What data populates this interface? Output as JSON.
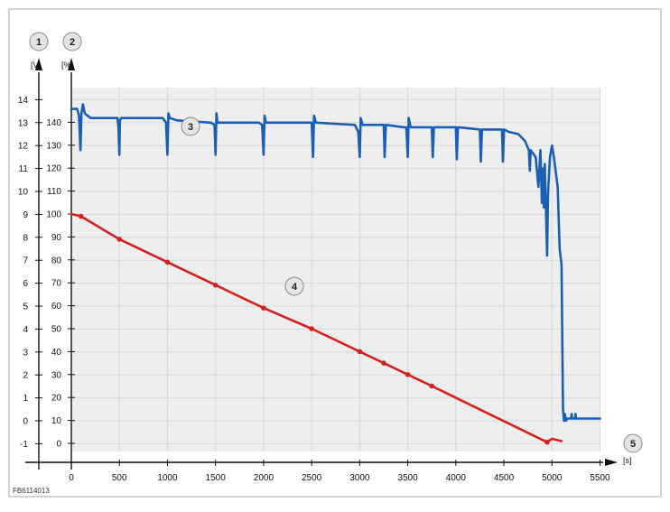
{
  "figure_id": "FB6114013",
  "markers": {
    "m1": "1",
    "m2": "2",
    "m3": "3",
    "m4": "4",
    "m5": "5"
  },
  "units": {
    "volt": "[V]",
    "percent": "[%]",
    "seconds": "[s]"
  },
  "colors": {
    "voltage": "#1a5fb4",
    "charge": "#d42020",
    "grid": "#d8d8d8",
    "plot_bg": "#eeeeee",
    "axis": "#111111",
    "frame": "#aaaaaa"
  },
  "chart_data": {
    "type": "line",
    "x_ticks": [
      0,
      500,
      1000,
      1500,
      2000,
      2500,
      3000,
      3500,
      4000,
      4500,
      5000,
      5500
    ],
    "xlim": [
      0,
      5500
    ],
    "y_left_ticks": [
      14,
      13,
      12,
      11,
      10,
      9,
      8,
      7,
      6,
      5,
      4,
      3,
      2,
      1,
      0,
      -1
    ],
    "y_left_lim": [
      -1,
      14
    ],
    "y_right_ticks": [
      140,
      130,
      120,
      110,
      100,
      90,
      80,
      70,
      60,
      50,
      40,
      30,
      20,
      10,
      0
    ],
    "y_right_lim": [
      0,
      140
    ],
    "grid": true,
    "series": [
      {
        "axis": "voltage",
        "points": [
          [
            0,
            13.6
          ],
          [
            60,
            13.6
          ],
          [
            80,
            13.3
          ],
          [
            95,
            11.8
          ],
          [
            105,
            13.4
          ],
          [
            120,
            13.8
          ],
          [
            140,
            13.4
          ],
          [
            200,
            13.2
          ],
          [
            480,
            13.2
          ],
          [
            490,
            12.8
          ],
          [
            500,
            11.6
          ],
          [
            505,
            13.1
          ],
          [
            520,
            13.2
          ],
          [
            950,
            13.2
          ],
          [
            985,
            13.0
          ],
          [
            1000,
            11.6
          ],
          [
            1010,
            13.4
          ],
          [
            1025,
            13.2
          ],
          [
            1100,
            13.1
          ],
          [
            1450,
            13.0
          ],
          [
            1490,
            12.9
          ],
          [
            1500,
            11.6
          ],
          [
            1510,
            13.4
          ],
          [
            1520,
            13.0
          ],
          [
            1950,
            13.0
          ],
          [
            1985,
            12.9
          ],
          [
            2000,
            11.6
          ],
          [
            2010,
            13.3
          ],
          [
            2025,
            13.0
          ],
          [
            2500,
            13.0
          ],
          [
            2515,
            11.5
          ],
          [
            2525,
            13.3
          ],
          [
            2545,
            13.0
          ],
          [
            2950,
            12.9
          ],
          [
            2985,
            12.6
          ],
          [
            3000,
            11.5
          ],
          [
            3010,
            13.2
          ],
          [
            3030,
            12.9
          ],
          [
            3250,
            12.9
          ],
          [
            3260,
            11.5
          ],
          [
            3272,
            12.9
          ],
          [
            3460,
            12.8
          ],
          [
            3485,
            12.8
          ],
          [
            3500,
            11.5
          ],
          [
            3510,
            13.2
          ],
          [
            3530,
            12.8
          ],
          [
            3750,
            12.8
          ],
          [
            3760,
            11.5
          ],
          [
            3772,
            12.8
          ],
          [
            4000,
            12.8
          ],
          [
            4010,
            11.4
          ],
          [
            4022,
            12.8
          ],
          [
            4250,
            12.7
          ],
          [
            4260,
            11.3
          ],
          [
            4272,
            12.7
          ],
          [
            4480,
            12.7
          ],
          [
            4490,
            11.3
          ],
          [
            4502,
            12.7
          ],
          [
            4550,
            12.6
          ],
          [
            4650,
            12.5
          ],
          [
            4720,
            12.2
          ],
          [
            4760,
            11.8
          ],
          [
            4770,
            10.9
          ],
          [
            4778,
            11.8
          ],
          [
            4830,
            11.5
          ],
          [
            4860,
            10.2
          ],
          [
            4880,
            11.8
          ],
          [
            4895,
            9.5
          ],
          [
            4905,
            11.0
          ],
          [
            4915,
            9.3
          ],
          [
            4925,
            11.2
          ],
          [
            4950,
            7.2
          ],
          [
            4960,
            10.0
          ],
          [
            4980,
            11.5
          ],
          [
            5000,
            12.0
          ],
          [
            5020,
            11.5
          ],
          [
            5060,
            10.2
          ],
          [
            5080,
            7.5
          ],
          [
            5100,
            6.8
          ],
          [
            5115,
            0.5
          ],
          [
            5125,
            0.0
          ],
          [
            5135,
            0.3
          ],
          [
            5145,
            0.0
          ],
          [
            5160,
            0.1
          ],
          [
            5200,
            0.1
          ],
          [
            5205,
            0.3
          ],
          [
            5210,
            0.1
          ],
          [
            5240,
            0.1
          ],
          [
            5245,
            0.3
          ],
          [
            5250,
            0.1
          ],
          [
            5300,
            0.1
          ],
          [
            5350,
            0.1
          ],
          [
            5400,
            0.1
          ],
          [
            5450,
            0.1
          ],
          [
            5500,
            0.1
          ]
        ]
      },
      {
        "axis": "charge",
        "points": [
          [
            0,
            100
          ],
          [
            100,
            99
          ],
          [
            500,
            89
          ],
          [
            1000,
            79
          ],
          [
            1500,
            69
          ],
          [
            2000,
            59
          ],
          [
            2500,
            50
          ],
          [
            3000,
            40
          ],
          [
            3250,
            35
          ],
          [
            3500,
            30
          ],
          [
            3750,
            25
          ],
          [
            4950,
            0.5
          ],
          [
            5000,
            2
          ],
          [
            5100,
            1
          ]
        ],
        "markers_at": [
          100,
          500,
          1000,
          1500,
          2000,
          2500,
          3000,
          3250,
          3500,
          3750,
          4950
        ]
      }
    ]
  }
}
